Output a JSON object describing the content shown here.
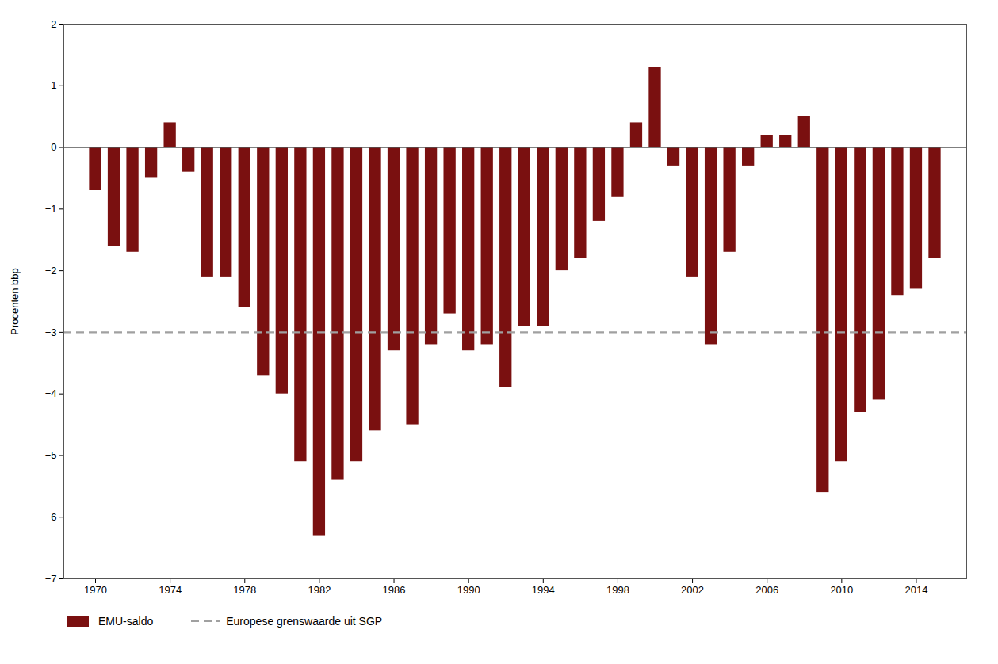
{
  "chart_data": {
    "type": "bar",
    "x": [
      1970,
      1971,
      1972,
      1973,
      1974,
      1975,
      1976,
      1977,
      1978,
      1979,
      1980,
      1981,
      1982,
      1983,
      1984,
      1985,
      1986,
      1987,
      1988,
      1989,
      1990,
      1991,
      1992,
      1993,
      1994,
      1995,
      1996,
      1997,
      1998,
      1999,
      2000,
      2001,
      2002,
      2003,
      2004,
      2005,
      2006,
      2007,
      2008,
      2009,
      2010,
      2011,
      2012,
      2013,
      2014,
      2015
    ],
    "series": [
      {
        "name": "EMU-saldo",
        "type": "bar",
        "color": "#7a1010",
        "values": [
          -0.7,
          -1.6,
          -1.7,
          -0.5,
          0.4,
          -0.4,
          -2.1,
          -2.1,
          -2.6,
          -3.7,
          -4.0,
          -5.1,
          -6.3,
          -5.4,
          -5.1,
          -4.6,
          -3.3,
          -4.5,
          -3.2,
          -2.7,
          -3.3,
          -3.2,
          -3.9,
          -2.9,
          -2.9,
          -2.0,
          -1.8,
          -1.2,
          -0.8,
          0.4,
          1.3,
          -0.3,
          -2.1,
          -3.2,
          -1.7,
          -0.3,
          0.2,
          0.2,
          0.5,
          -5.6,
          -5.1,
          -4.3,
          -4.1,
          -2.4,
          -2.3,
          -1.8
        ]
      },
      {
        "name": "Europese grenswaarde uit SGP",
        "type": "rule",
        "color": "#a0a0a0",
        "line_style": "dashed",
        "y": -3.0
      }
    ],
    "ylabel": "Procenten bbp",
    "xlim": [
      1968.3,
      2016.7
    ],
    "xticks": [
      1970,
      1974,
      1978,
      1982,
      1986,
      1990,
      1994,
      1998,
      2002,
      2006,
      2010,
      2014
    ],
    "ylim": [
      -7,
      2
    ],
    "yticks": [
      -7,
      -6,
      -5,
      -4,
      -3,
      -2,
      -1,
      0,
      1,
      2
    ],
    "grid": false,
    "legend": "bottom"
  }
}
